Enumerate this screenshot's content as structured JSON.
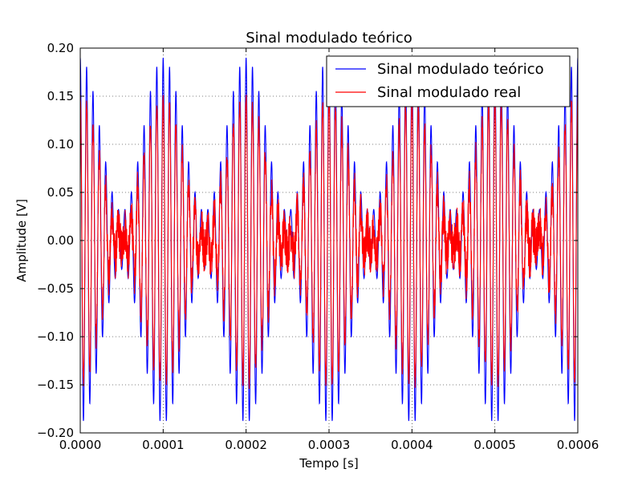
{
  "chart_data": {
    "type": "line",
    "title": "Sinal modulado teórico",
    "xlabel": "Tempo [s]",
    "ylabel": "Amplitude [V]",
    "xlim": [
      0,
      0.0006
    ],
    "ylim": [
      -0.2,
      0.2
    ],
    "x_ticks": [
      "0.0000",
      "0.0001",
      "0.0002",
      "0.0003",
      "0.0004",
      "0.0005",
      "0.0006"
    ],
    "y_ticks": [
      "−0.20",
      "−0.15",
      "−0.10",
      "−0.05",
      "0.00",
      "0.05",
      "0.10",
      "0.15",
      "0.20"
    ],
    "grid": true,
    "legend_position": "top-right",
    "series": [
      {
        "name": "Sinal modulado teórico",
        "color": "#0000ff",
        "carrier_frequency_hz": 130000,
        "modulating_frequency_hz": 10000,
        "peak_amplitude": 0.19,
        "envelope_min_amplitude": 0.03
      },
      {
        "name": "Sinal modulado real",
        "color": "#ff0000",
        "carrier_frequency_hz": 130000,
        "modulating_frequency_hz": 10000,
        "peak_amplitude": 0.15,
        "envelope_min_amplitude": 0.01,
        "noise_amplitude": 0.02
      }
    ]
  }
}
